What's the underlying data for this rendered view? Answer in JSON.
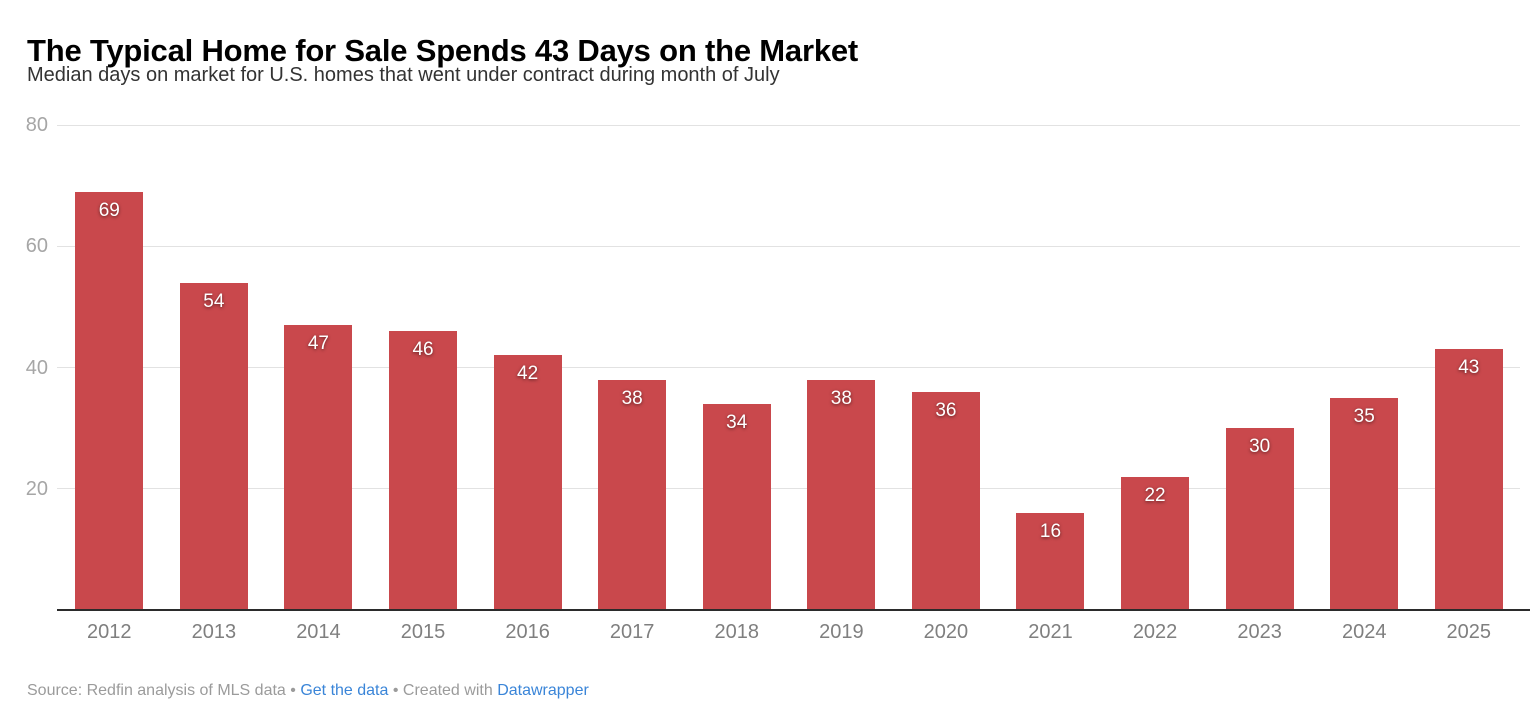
{
  "header": {
    "title": "The Typical Home for Sale Spends 43 Days on the Market",
    "subtitle": "Median days on market for U.S. homes that went under contract during month of July"
  },
  "chart_data": {
    "type": "bar",
    "categories": [
      "2012",
      "2013",
      "2014",
      "2015",
      "2016",
      "2017",
      "2018",
      "2019",
      "2020",
      "2021",
      "2022",
      "2023",
      "2024",
      "2025"
    ],
    "values": [
      69,
      54,
      47,
      46,
      42,
      38,
      34,
      38,
      36,
      16,
      22,
      30,
      35,
      43
    ],
    "title": "The Typical Home for Sale Spends 43 Days on the Market",
    "subtitle": "Median days on market for U.S. homes that went under contract during month of July",
    "xlabel": "",
    "ylabel": "",
    "ylim": [
      0,
      80
    ],
    "yticks": [
      20,
      40,
      60,
      80
    ],
    "grid": true,
    "legend": "none",
    "bar_color": "#c9484c",
    "value_label_color": "#ffffff",
    "gridline_color": "#e2e2e2",
    "axis_label_color": "#7f7f7f",
    "ytick_label_color": "#a6a6a6"
  },
  "footer": {
    "source_text": "Source: Redfin analysis of MLS data",
    "separator": "•",
    "get_data_link": "Get the data",
    "created_with_text": "Created with",
    "datawrapper_link": "Datawrapper",
    "link_color": "#3a85d8"
  }
}
